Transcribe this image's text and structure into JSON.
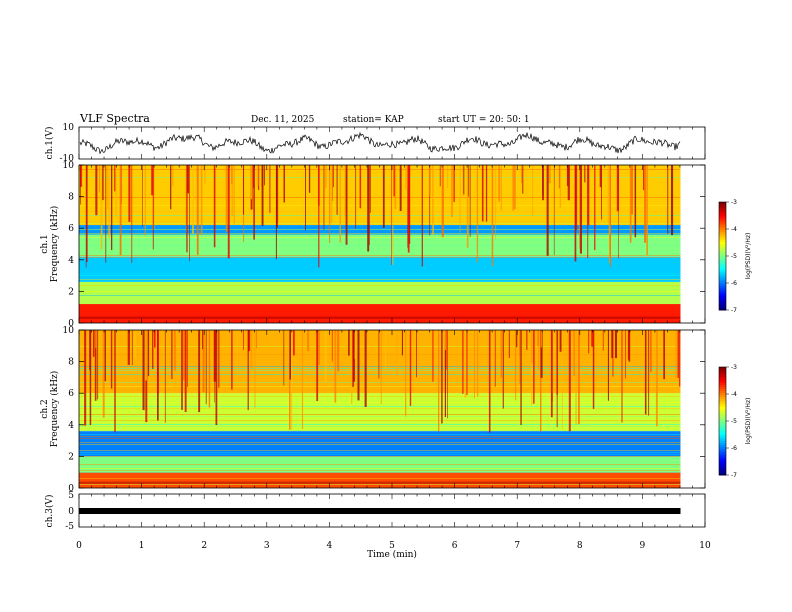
{
  "header": {
    "title": "VLF Spectra",
    "date": "Dec. 11, 2025",
    "station": "station= KAP",
    "start": "start  UT  =   20: 50: 1"
  },
  "chart_data": [
    {
      "id": "ch1-voltage",
      "type": "line",
      "ylabel": "ch.1(V)",
      "ylim": [
        -10,
        10
      ],
      "yticks": [
        "10",
        "-10"
      ],
      "xlim": [
        0,
        9.8
      ],
      "note": "noisy waveform oscillating approx. -5 to +5 V",
      "amplitude_range": [
        -5,
        5
      ]
    },
    {
      "id": "ch1-spectrogram",
      "type": "heatmap",
      "ylabel": "ch.1\nFrequency (kHz)",
      "ylabel_line1": "ch.1",
      "ylabel_line2": "Frequency (kHz)",
      "ylim": [
        0,
        10
      ],
      "yticks": [
        "0",
        "2",
        "4",
        "6",
        "8",
        "10"
      ],
      "xlim": [
        0,
        9.8
      ],
      "bands_khz": [
        {
          "low": 0,
          "high": 1.2,
          "level": -3.6
        },
        {
          "low": 1.2,
          "high": 2.6,
          "level": -4.8
        },
        {
          "low": 2.6,
          "high": 4.2,
          "level": -5.7
        },
        {
          "low": 4.2,
          "high": 5.6,
          "level": -5.0
        },
        {
          "low": 5.6,
          "high": 6.2,
          "level": -5.9
        },
        {
          "low": 6.2,
          "high": 10,
          "level": -4.3
        }
      ],
      "colorbar": {
        "min": -7,
        "max": -3,
        "ticks": [
          "-3",
          "-4",
          "-5",
          "-6",
          "-7"
        ],
        "label": "log(PSD)(V²/Hz)"
      }
    },
    {
      "id": "ch2-spectrogram",
      "type": "heatmap",
      "ylabel_line1": "ch.2",
      "ylabel_line2": "Frequency (kHz)",
      "ylim": [
        0,
        10
      ],
      "yticks": [
        "0",
        "2",
        "4",
        "6",
        "8",
        "10"
      ],
      "xlim": [
        0,
        9.8
      ],
      "bands_khz": [
        {
          "low": 0,
          "high": 1.0,
          "level": -3.8
        },
        {
          "low": 1.0,
          "high": 2.0,
          "level": -5.0
        },
        {
          "low": 2.0,
          "high": 3.6,
          "level": -6.0
        },
        {
          "low": 3.6,
          "high": 6.0,
          "level": -4.7
        },
        {
          "low": 6.0,
          "high": 10,
          "level": -4.2
        }
      ],
      "colorbar": {
        "min": -7,
        "max": -3,
        "ticks": [
          "-3",
          "-4",
          "-5",
          "-6",
          "-7"
        ],
        "label": "log(PSD)(V²/Hz)"
      }
    },
    {
      "id": "ch3-voltage",
      "type": "line",
      "ylabel": "ch.3(V)",
      "ylim": [
        -5,
        5
      ],
      "yticks": [
        "5",
        "0",
        "-5"
      ],
      "xlim": [
        0,
        9.8
      ],
      "level_range": [
        -0.5,
        0.5
      ]
    }
  ],
  "xaxis": {
    "label": "Time  (min)",
    "xlim": [
      0,
      10
    ],
    "ticks": [
      "0",
      "1",
      "2",
      "3",
      "4",
      "5",
      "6",
      "7",
      "8",
      "9",
      "10"
    ]
  }
}
